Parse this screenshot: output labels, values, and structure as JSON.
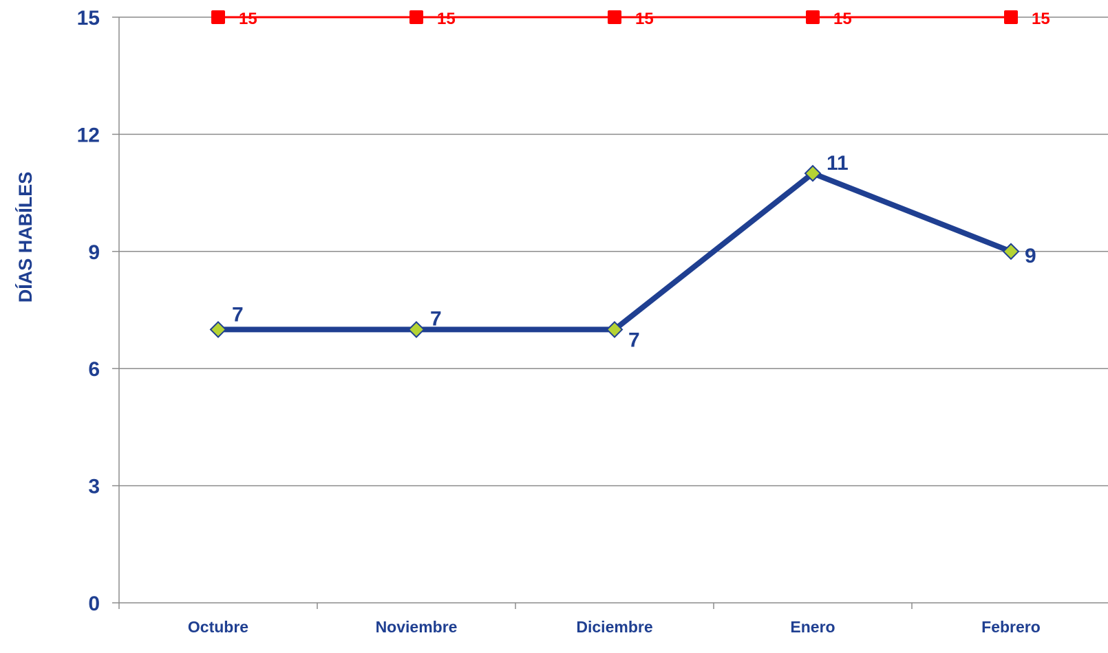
{
  "chart_data": {
    "type": "line",
    "title": "",
    "xlabel": "",
    "ylabel": "DÍAS HABÍLES",
    "categories": [
      "Octubre",
      "Noviembre",
      "Diciembre",
      "Enero",
      "Febrero"
    ],
    "ylim": [
      0,
      15
    ],
    "yticks": [
      0,
      3,
      6,
      9,
      12,
      15
    ],
    "grid": true,
    "legend": "none",
    "series": [
      {
        "values": [
          15,
          15,
          15,
          15,
          15
        ],
        "color": "#ff0000",
        "marker": "square",
        "labels": [
          "15",
          "15",
          "15",
          "15",
          "15"
        ]
      },
      {
        "values": [
          7,
          7,
          7,
          11,
          9
        ],
        "color": "#1f3f91",
        "marker": "diamond",
        "marker_fill": "#b5d334",
        "labels": [
          "7",
          "7",
          "7",
          "11",
          "9"
        ]
      }
    ],
    "colors": {
      "axis_text": "#1f3f91",
      "grid": "#8c8c8c"
    }
  }
}
